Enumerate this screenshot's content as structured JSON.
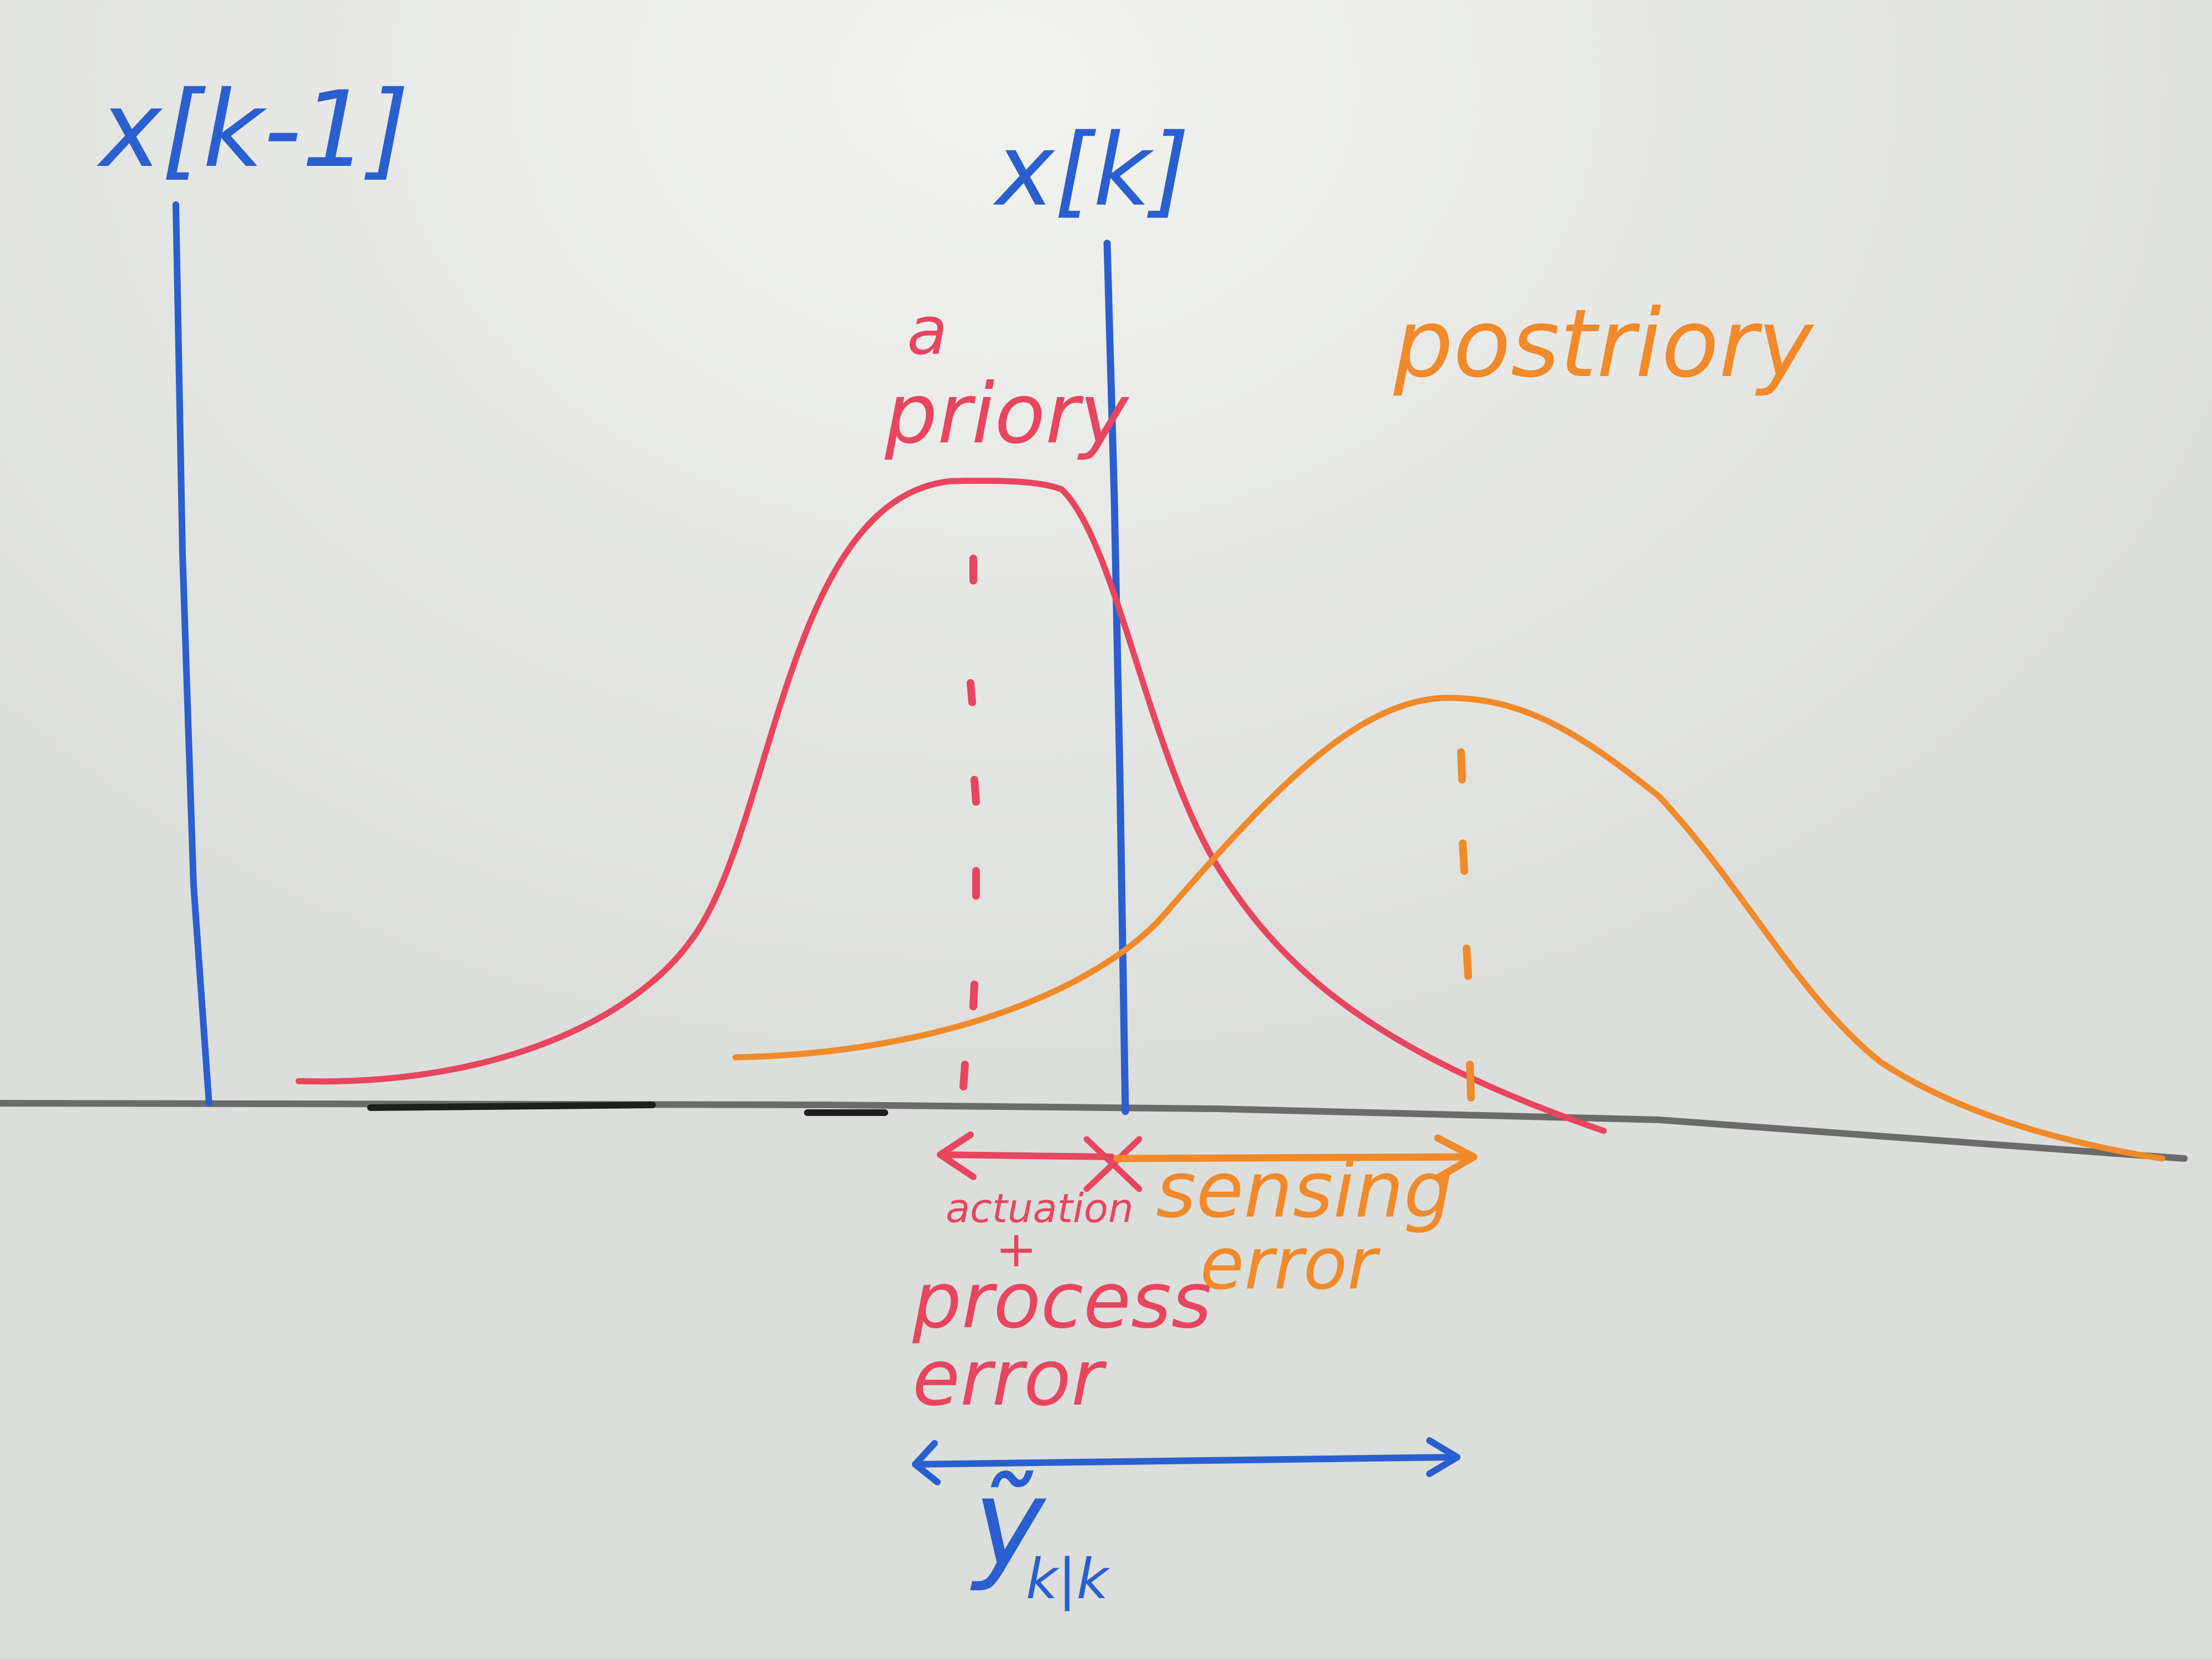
{
  "labels": {
    "x_prev": "x[k-1]",
    "x_curr": "x[k]",
    "a_priori_line1": "a",
    "a_priori_line2": "priory",
    "a_posteriori": "postriory",
    "actuation_line1": "actuation",
    "actuation_line2": "+",
    "process_line1": "process",
    "process_line2": "error",
    "sensing_line1": "sensing",
    "sensing_line2": "error",
    "innovation_symbol": "ỹ",
    "innovation_subscript": "k|k"
  },
  "colors": {
    "board": "#dcdedb",
    "blue_marker": "#2a5fd0",
    "red_marker": "#e8455f",
    "pink_marker": "#e86a96",
    "orange_marker": "#f08a2a",
    "black_marker": "#2a2a2a"
  }
}
